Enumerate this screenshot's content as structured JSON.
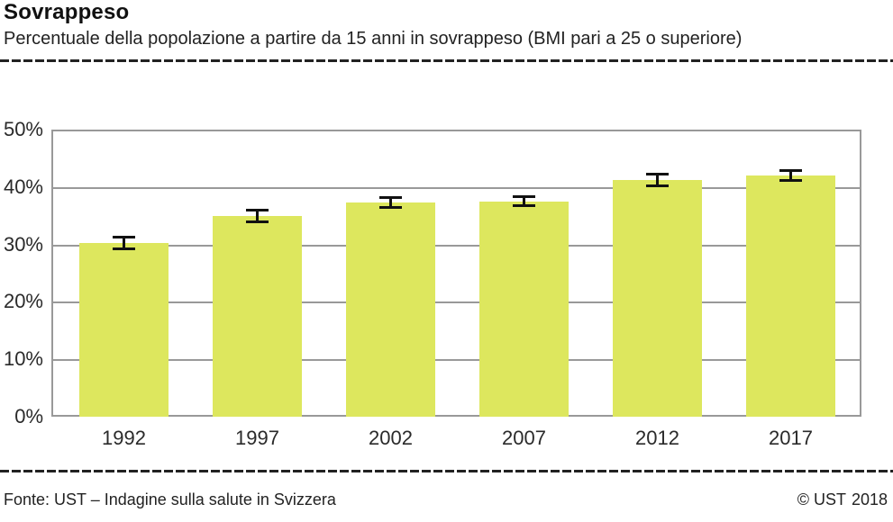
{
  "header": {
    "title": "Sovrappeso",
    "subtitle": "Percentuale della popolazione a partire da 15 anni in sovrappeso (BMI pari a 25 o superiore)"
  },
  "footer": {
    "source": "Fonte: UST – Indagine sulla salute in Svizzera",
    "copyright": "© UST",
    "year": "2018"
  },
  "colors": {
    "bar": "#dde75e",
    "grid": "#999999",
    "error_bar": "#111111",
    "rule": "#222222",
    "text": "#2a2a2a"
  },
  "chart_data": {
    "type": "bar",
    "title": "Sovrappeso",
    "subtitle": "Percentuale della popolazione a partire da 15 anni in sovrappeso (BMI pari a 25 o superiore)",
    "categories": [
      "1992",
      "1997",
      "2002",
      "2007",
      "2012",
      "2017"
    ],
    "values": [
      30.3,
      35.0,
      37.3,
      37.5,
      41.2,
      42.0
    ],
    "error_bars_plus_minus": [
      1.0,
      1.0,
      0.8,
      0.8,
      1.0,
      0.8
    ],
    "unit": "%",
    "xlabel": "",
    "ylabel": "",
    "ylim": [
      0,
      50
    ],
    "yticks": [
      {
        "value": 0,
        "label": "0%"
      },
      {
        "value": 10,
        "label": "10%"
      },
      {
        "value": 20,
        "label": "20%"
      },
      {
        "value": 30,
        "label": "30%"
      },
      {
        "value": 40,
        "label": "40%"
      },
      {
        "value": 50,
        "label": "50%"
      }
    ],
    "grid": true,
    "legend": false,
    "bar_color": "#dde75e"
  }
}
